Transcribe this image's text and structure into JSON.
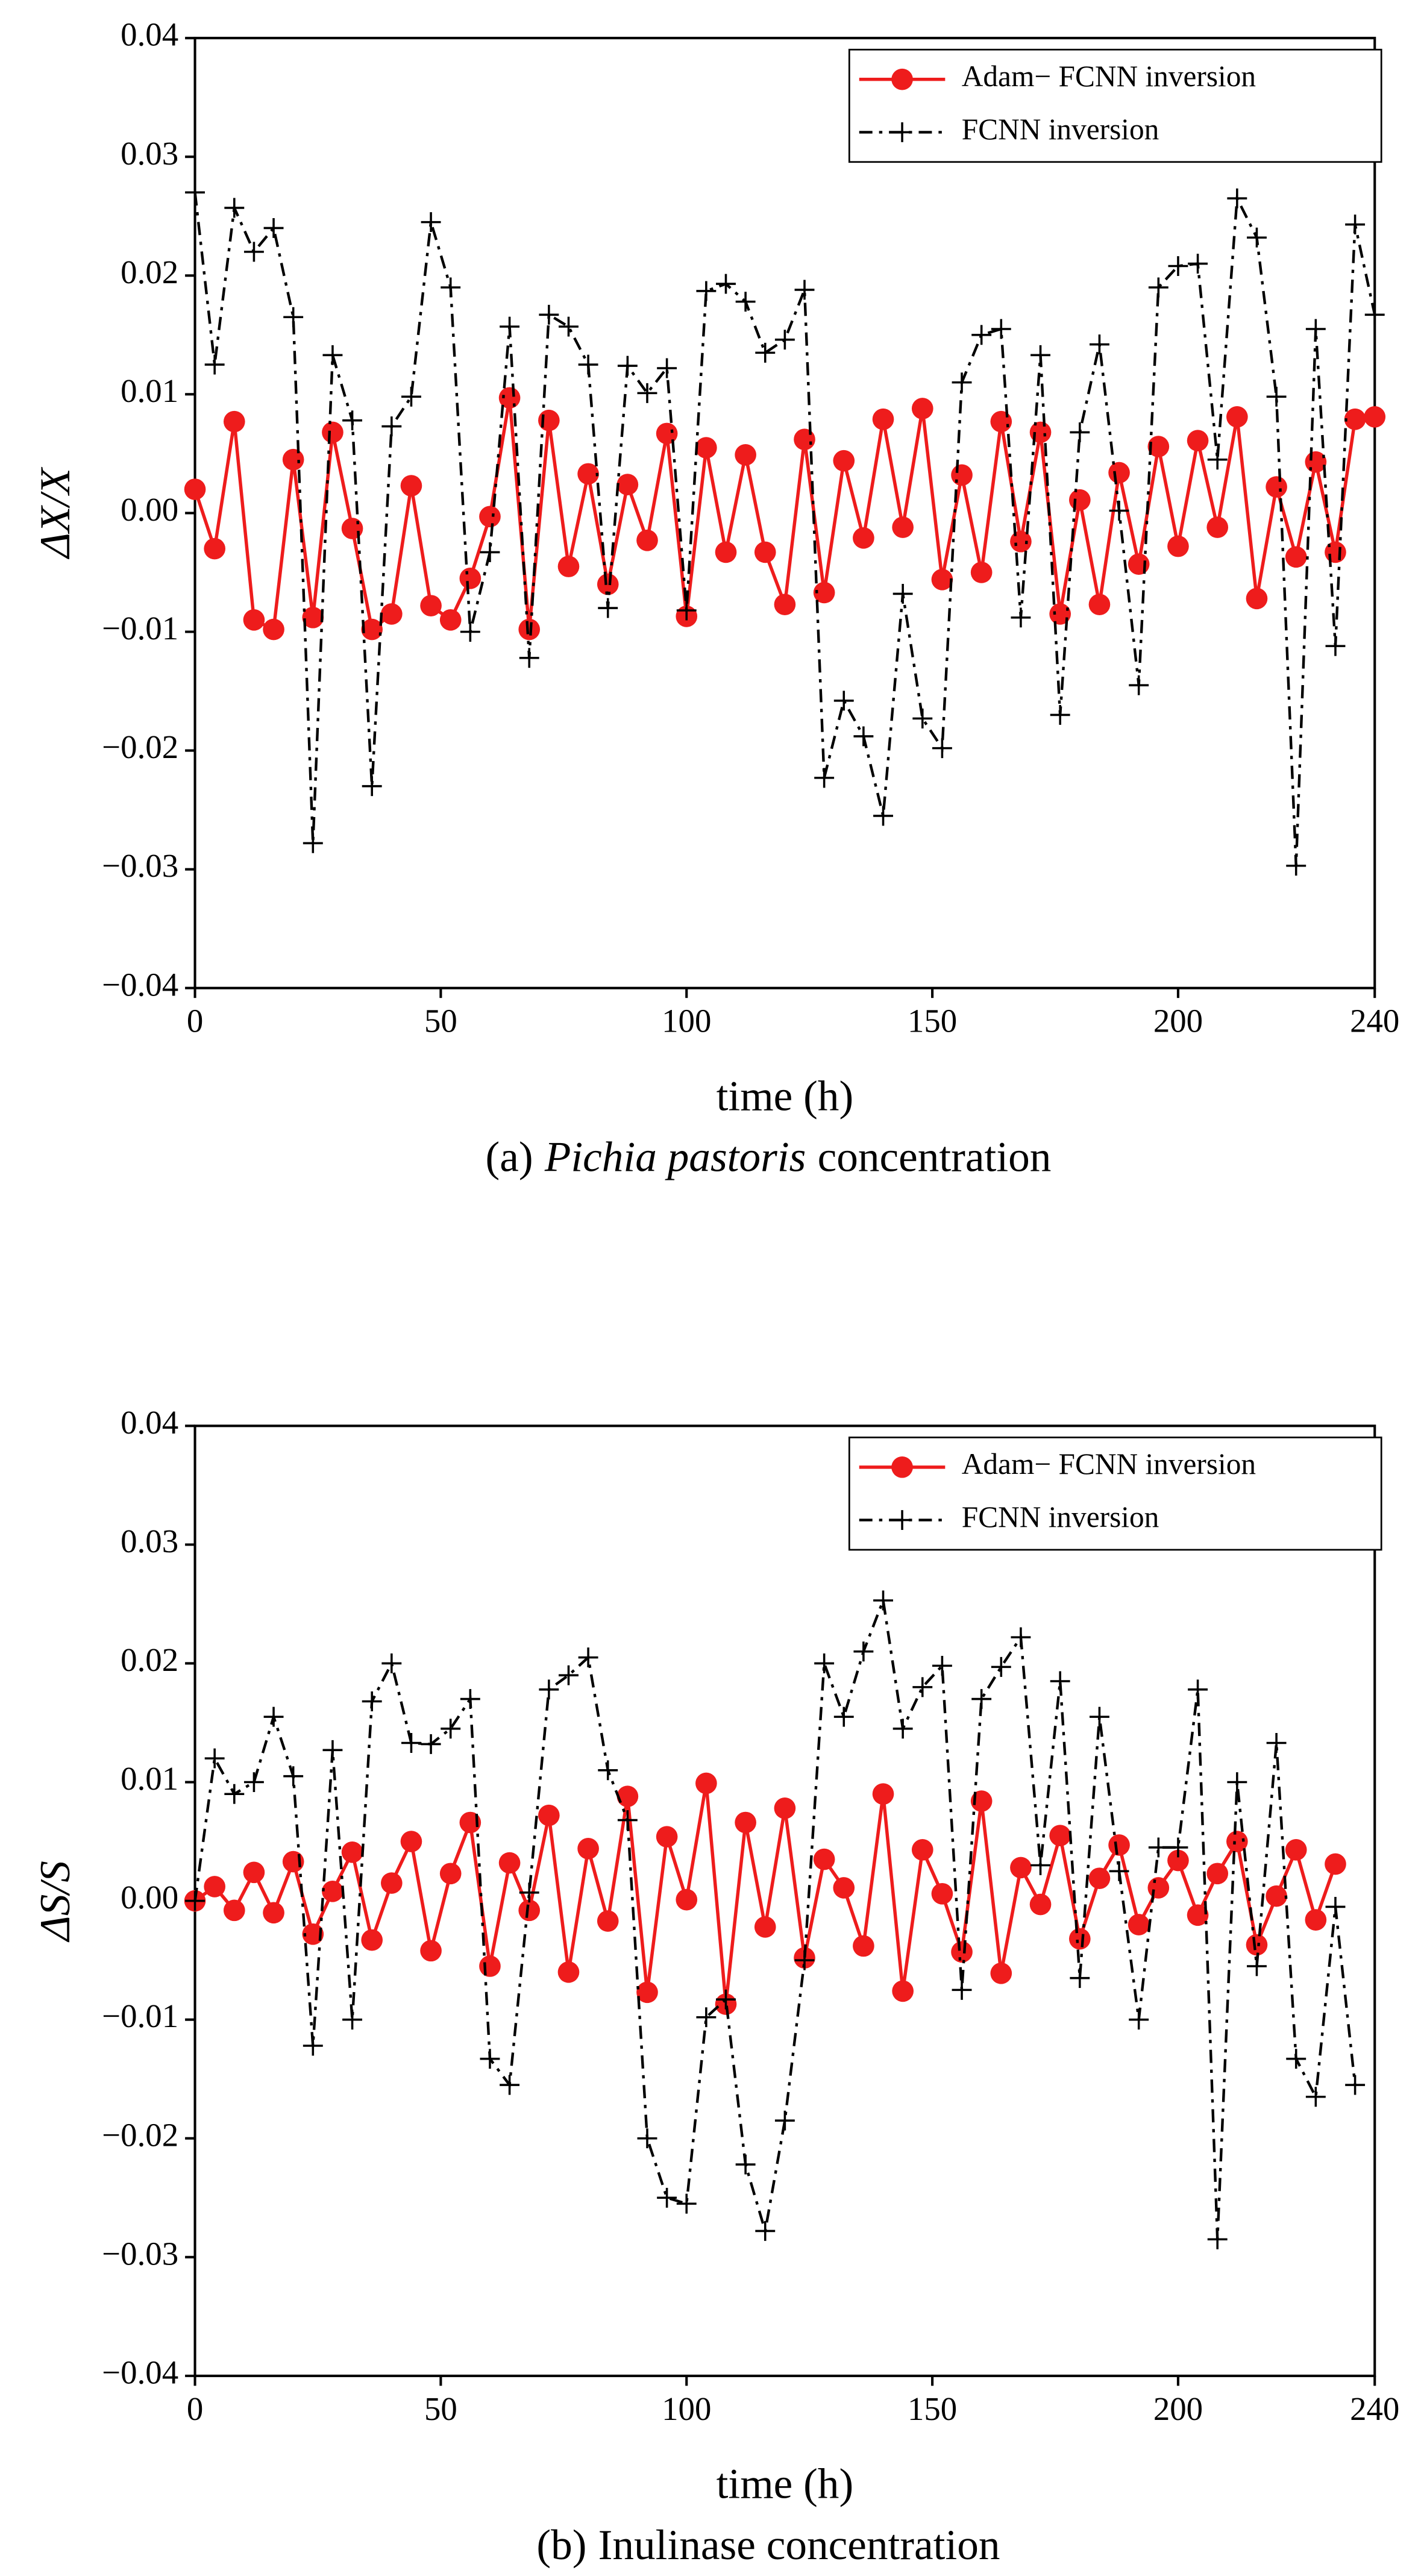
{
  "chart_data": [
    {
      "type": "line",
      "ylabel": "ΔX/X",
      "xlabel": "time (h)",
      "caption": {
        "label": "(a)",
        "species": "Pichia pastoris",
        "text": "concentration"
      },
      "x": [
        0,
        4,
        8,
        12,
        16,
        20,
        24,
        28,
        32,
        36,
        40,
        44,
        48,
        52,
        56,
        60,
        64,
        68,
        72,
        76,
        80,
        84,
        88,
        92,
        96,
        100,
        104,
        108,
        112,
        116,
        120,
        124,
        128,
        132,
        136,
        140,
        144,
        148,
        152,
        156,
        160,
        164,
        168,
        172,
        176,
        180,
        184,
        188,
        192,
        196,
        200,
        204,
        208,
        212,
        216,
        220,
        224,
        228,
        232,
        236,
        240
      ],
      "series": [
        {
          "name": "Adam− FCNN inversion",
          "color": "#ee1c1c",
          "line": "solid",
          "marker": "circle",
          "values": [
            0.002,
            -0.003,
            0.0077,
            -0.009,
            -0.0098,
            0.0045,
            -0.0088,
            0.0068,
            -0.0013,
            -0.0098,
            -0.0085,
            0.0023,
            -0.0078,
            -0.009,
            -0.0055,
            -0.0003,
            0.0097,
            -0.0098,
            0.0078,
            -0.0045,
            0.0033,
            -0.006,
            0.0024,
            -0.0023,
            0.0067,
            -0.0087,
            0.0055,
            -0.0033,
            0.0049,
            -0.0033,
            -0.0077,
            0.0062,
            -0.0067,
            0.0044,
            -0.0021,
            0.0079,
            -0.0012,
            0.0088,
            -0.0056,
            0.0032,
            -0.005,
            0.0077,
            -0.0024,
            0.0068,
            -0.0085,
            0.0011,
            -0.0077,
            0.0034,
            -0.0043,
            0.0056,
            -0.0028,
            0.0061,
            -0.0012,
            0.0081,
            -0.0072,
            0.0022,
            -0.0037,
            0.0043,
            -0.0033,
            0.0079,
            0.0081
          ]
        },
        {
          "name": "FCNN inversion",
          "color": "#000000",
          "line": "dashdot",
          "marker": "plus",
          "values": [
            0.027,
            0.0125,
            0.0257,
            0.022,
            0.024,
            0.0165,
            -0.0278,
            0.0133,
            0.0078,
            -0.023,
            0.0073,
            0.0098,
            0.0245,
            0.019,
            -0.01,
            -0.0033,
            0.0157,
            -0.0122,
            0.0167,
            0.0157,
            0.0125,
            -0.008,
            0.0124,
            0.0101,
            0.0122,
            -0.0082,
            0.0187,
            0.0193,
            0.0178,
            0.0135,
            0.0146,
            0.0188,
            -0.0223,
            -0.0158,
            -0.0188,
            -0.0255,
            -0.0068,
            -0.0173,
            -0.0198,
            0.011,
            0.015,
            0.0155,
            -0.0088,
            0.0133,
            -0.017,
            0.0068,
            0.0142,
            0.0002,
            -0.0145,
            0.019,
            0.0208,
            0.021,
            0.0045,
            0.0265,
            0.0232,
            0.0098,
            -0.0297,
            0.0155,
            -0.0112,
            0.0243,
            0.0167
          ]
        }
      ],
      "xlim": [
        0,
        240
      ],
      "xticks": [
        0,
        50,
        100,
        150,
        200,
        240
      ],
      "ylim": [
        -0.04,
        0.04
      ],
      "yticks": [
        {
          "value": -0.04,
          "label": "−0.04"
        },
        {
          "value": -0.03,
          "label": "−0.03"
        },
        {
          "value": -0.02,
          "label": "−0.02"
        },
        {
          "value": -0.01,
          "label": "−0.01"
        },
        {
          "value": 0,
          "label": "0.00"
        },
        0.01,
        0.02,
        0.03,
        0.04
      ],
      "legend": "upper right",
      "grid": false
    },
    {
      "type": "line",
      "ylabel": "ΔS/S",
      "xlabel": "time (h)",
      "caption": {
        "label": "(b)",
        "text": "Inulinase concentration"
      },
      "x": [
        0,
        4,
        8,
        12,
        16,
        20,
        24,
        28,
        32,
        36,
        40,
        44,
        48,
        52,
        56,
        60,
        64,
        68,
        72,
        76,
        80,
        84,
        88,
        92,
        96,
        100,
        104,
        108,
        112,
        116,
        120,
        124,
        128,
        132,
        136,
        140,
        144,
        148,
        152,
        156,
        160,
        164,
        168,
        172,
        176,
        180,
        184,
        188,
        192,
        196,
        200,
        204,
        208,
        212,
        216,
        220,
        224,
        228,
        232,
        236
      ],
      "series": [
        {
          "name": "Adam− FCNN inversion",
          "color": "#ee1c1c",
          "line": "solid",
          "marker": "circle",
          "values": [
            0.0,
            0.0012,
            -0.0008,
            0.0024,
            -0.001,
            0.0033,
            -0.0028,
            0.0008,
            0.0041,
            -0.0033,
            0.0015,
            0.005,
            -0.0042,
            0.0023,
            0.0066,
            -0.0055,
            0.0032,
            -0.0008,
            0.0072,
            -0.006,
            0.0044,
            -0.0017,
            0.0088,
            -0.0077,
            0.0054,
            0.0001,
            0.0099,
            -0.0087,
            0.0066,
            -0.0022,
            0.0078,
            -0.0048,
            0.0035,
            0.0011,
            -0.0038,
            0.009,
            -0.0076,
            0.0043,
            0.0006,
            -0.0043,
            0.0084,
            -0.0061,
            0.0028,
            -0.0003,
            0.0055,
            -0.0032,
            0.0019,
            0.0047,
            -0.002,
            0.0011,
            0.0034,
            -0.0012,
            0.0023,
            0.005,
            -0.0037,
            0.0004,
            0.0043,
            -0.0016,
            0.0031,
            null
          ]
        },
        {
          "name": "FCNN inversion",
          "color": "#000000",
          "line": "dashdot",
          "marker": "plus",
          "values": [
            0.0,
            0.012,
            0.009,
            0.01,
            0.0155,
            0.0105,
            -0.0122,
            0.0127,
            -0.01,
            0.0168,
            0.02,
            0.0133,
            0.0132,
            0.0145,
            0.017,
            -0.0133,
            -0.0155,
            0.0007,
            0.0178,
            0.019,
            0.0205,
            0.011,
            0.0068,
            -0.02,
            -0.025,
            -0.0255,
            -0.0098,
            -0.0083,
            -0.0222,
            -0.0278,
            -0.0185,
            -0.005,
            0.02,
            0.0155,
            0.021,
            0.0253,
            0.0145,
            0.018,
            0.0198,
            -0.0075,
            0.017,
            0.0197,
            0.0222,
            0.003,
            0.0185,
            -0.0065,
            0.0155,
            0.0025,
            -0.01,
            0.0045,
            0.0045,
            0.0178,
            -0.0285,
            0.01,
            -0.0055,
            0.0133,
            -0.0133,
            -0.0165,
            -0.0005,
            -0.0155
          ]
        }
      ],
      "xlim": [
        0,
        240
      ],
      "xticks": [
        0,
        50,
        100,
        150,
        200,
        240
      ],
      "ylim": [
        -0.04,
        0.04
      ],
      "yticks": [
        {
          "value": -0.04,
          "label": "−0.04"
        },
        {
          "value": -0.03,
          "label": "−0.03"
        },
        {
          "value": -0.02,
          "label": "−0.02"
        },
        {
          "value": -0.01,
          "label": "−0.01"
        },
        {
          "value": 0,
          "label": "0.00"
        },
        0.01,
        0.02,
        0.03,
        0.04
      ],
      "legend": "upper right",
      "grid": false
    }
  ]
}
